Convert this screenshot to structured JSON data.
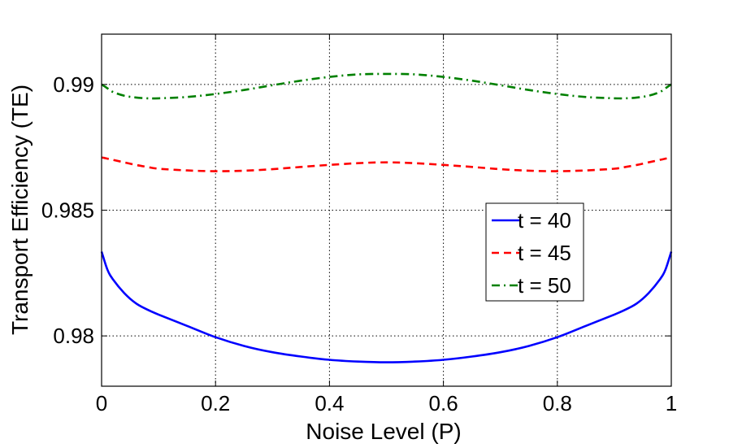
{
  "chart_data": {
    "type": "line",
    "title": "",
    "xlabel": "Noise Level (P)",
    "ylabel": "Transport Efficiency (TE)",
    "xlim": [
      0,
      1
    ],
    "ylim": [
      0.978,
      0.992
    ],
    "grid": true,
    "legend_position": "center-right",
    "x_ticks": [
      0,
      0.2,
      0.4,
      0.6,
      0.8,
      1
    ],
    "x_tick_labels": [
      "0",
      "0.2",
      "0.4",
      "0.6",
      "0.8",
      "1"
    ],
    "y_ticks": [
      0.98,
      0.985,
      0.99
    ],
    "y_tick_labels": [
      "0.98",
      "0.985",
      "0.99"
    ],
    "x": [
      0,
      0.01,
      0.02,
      0.04,
      0.06,
      0.08,
      0.1,
      0.15,
      0.2,
      0.25,
      0.3,
      0.35,
      0.4,
      0.45,
      0.5,
      0.55,
      0.6,
      0.65,
      0.7,
      0.75,
      0.8,
      0.85,
      0.9,
      0.92,
      0.94,
      0.96,
      0.98,
      0.99,
      1
    ],
    "series": [
      {
        "name": "t = 40",
        "label": "t = 40",
        "color": "#0000ff",
        "dash": "solid",
        "values": [
          0.98335,
          0.98265,
          0.98225,
          0.9817,
          0.9813,
          0.98105,
          0.98085,
          0.9804,
          0.97995,
          0.9796,
          0.97935,
          0.97918,
          0.97905,
          0.97898,
          0.97895,
          0.97898,
          0.97905,
          0.97918,
          0.97935,
          0.9796,
          0.97995,
          0.9804,
          0.98085,
          0.98105,
          0.9813,
          0.9817,
          0.98225,
          0.98265,
          0.98335
        ]
      },
      {
        "name": "t = 45",
        "label": "t = 45",
        "color": "#ff0000",
        "dash": "dashed",
        "values": [
          0.9871,
          0.98705,
          0.987,
          0.9869,
          0.9868,
          0.98672,
          0.98665,
          0.98658,
          0.98655,
          0.98657,
          0.98663,
          0.98672,
          0.9868,
          0.98687,
          0.9869,
          0.98687,
          0.9868,
          0.98672,
          0.98663,
          0.98657,
          0.98655,
          0.98658,
          0.98665,
          0.98672,
          0.9868,
          0.9869,
          0.987,
          0.98705,
          0.9871
        ]
      },
      {
        "name": "t = 50",
        "label": "t = 50",
        "color": "#008000",
        "dash": "dashdot",
        "values": [
          0.99,
          0.98985,
          0.9897,
          0.98955,
          0.98948,
          0.98945,
          0.98945,
          0.9895,
          0.98962,
          0.98978,
          0.98997,
          0.99015,
          0.9903,
          0.9904,
          0.99042,
          0.9904,
          0.9903,
          0.99015,
          0.98997,
          0.98978,
          0.98962,
          0.9895,
          0.98945,
          0.98945,
          0.98948,
          0.98955,
          0.9897,
          0.98985,
          0.99
        ]
      }
    ]
  }
}
